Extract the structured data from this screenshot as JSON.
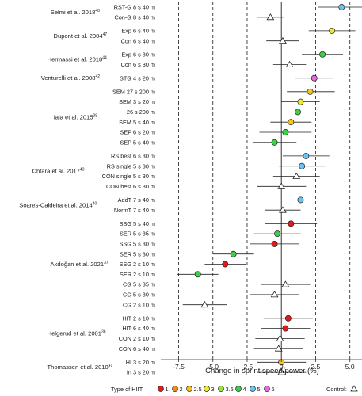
{
  "chart_data": {
    "type": "scatter",
    "xlabel": "Change in sprint speed/power (%)",
    "xlim": [
      -8.8,
      6.0
    ],
    "xticks": [
      "-7.5",
      "-5.0",
      "-2.5",
      "0",
      "2.5",
      "5.0"
    ],
    "grid": "dashed vertical lines at x = -7.5, -5.0, -2.5, 2.5, 5.0; solid line at 0",
    "studies": [
      {
        "name": "Selmi et al. 2018",
        "ref": "48",
        "rows": [
          0,
          1
        ]
      },
      {
        "name": "Dupont et al. 2004",
        "ref": "47",
        "rows": [
          2,
          3
        ]
      },
      {
        "name": "Hermassi et al. 2018",
        "ref": "44",
        "rows": [
          4,
          5
        ]
      },
      {
        "name": "Venturelli et al. 2008",
        "ref": "42",
        "rows": [
          6
        ]
      },
      {
        "name": "Iaia et al. 2015",
        "ref": "38",
        "rows": [
          7,
          8,
          9,
          10,
          11,
          12
        ]
      },
      {
        "name": "Chtara et al. 2017",
        "ref": "43",
        "rows": [
          13,
          14,
          15,
          16
        ]
      },
      {
        "name": "Soares-Caldeira et al. 2014",
        "ref": "40",
        "rows": [
          17,
          18
        ]
      },
      {
        "name": "Akdoğan et al. 2021",
        "ref": "37",
        "rows": [
          19,
          20,
          21,
          22,
          23,
          24,
          25,
          26,
          27
        ]
      },
      {
        "name": "Helgerud et al. 2001",
        "ref": "36",
        "rows": [
          28,
          29,
          30,
          31
        ]
      },
      {
        "name": "Thomassen et al. 2010",
        "ref": "41",
        "rows": [
          32,
          33
        ]
      }
    ],
    "rows": [
      {
        "label": "RST-G 8 s 40 m",
        "value": 4.4,
        "lo": 2.7,
        "hi": 6.1,
        "group": "5"
      },
      {
        "label": "Con-G 8 s 40 m",
        "value": -0.8,
        "lo": -1.8,
        "hi": 0.2,
        "group": "control"
      },
      {
        "label": "Exp 6 s 40 m",
        "value": 3.7,
        "lo": 2.0,
        "hi": 5.4,
        "group": "3"
      },
      {
        "label": "Con 6 s 40 m",
        "value": 0.1,
        "lo": -1.1,
        "hi": 1.3,
        "group": "control"
      },
      {
        "label": "Exp 6 s 30 m",
        "value": 3.0,
        "lo": 1.5,
        "hi": 4.5,
        "group": "4"
      },
      {
        "label": "Con 6 s 30 m",
        "value": 0.6,
        "lo": -0.6,
        "hi": 1.8,
        "group": "control"
      },
      {
        "label": "STG 4 s 20 m",
        "value": 2.4,
        "lo": 1.0,
        "hi": 3.8,
        "group": "6"
      },
      {
        "label": "SEM 27 s 200 m",
        "value": 2.1,
        "lo": 0.4,
        "hi": 3.9,
        "group": "2.5"
      },
      {
        "label": "SEM 3 s 20 m",
        "value": 1.4,
        "lo": 0.0,
        "hi": 2.8,
        "group": "3"
      },
      {
        "label": "26 s 200 m",
        "value": 1.2,
        "lo": -0.3,
        "hi": 2.7,
        "group": "4"
      },
      {
        "label": "SEM 5 s 40 m",
        "value": 0.7,
        "lo": -0.8,
        "hi": 2.2,
        "group": "2.5"
      },
      {
        "label": "SEP 6 s 20 m",
        "value": 0.3,
        "lo": -1.6,
        "hi": 2.2,
        "group": "4"
      },
      {
        "label": "SEP 5 s 40 m",
        "value": -0.5,
        "lo": -2.1,
        "hi": 1.1,
        "group": "4"
      },
      {
        "label": "RS best 6 s 30 m",
        "value": 1.8,
        "lo": 0.1,
        "hi": 3.5,
        "group": "5"
      },
      {
        "label": "RS single 5 s 30 m",
        "value": 1.5,
        "lo": -0.2,
        "hi": 3.2,
        "group": "5"
      },
      {
        "label": "CON single 5 s 30 m",
        "value": 1.1,
        "lo": -0.6,
        "hi": 2.8,
        "group": "control"
      },
      {
        "label": "CON best 6 s 30 m",
        "value": 0.0,
        "lo": -1.8,
        "hi": 1.8,
        "group": "control"
      },
      {
        "label": "AddT 7 s 40 m",
        "value": 1.4,
        "lo": 0.1,
        "hi": 2.7,
        "group": "5"
      },
      {
        "label": "NormT 7 s 40 m",
        "value": 0.1,
        "lo": -1.2,
        "hi": 1.4,
        "group": "control"
      },
      {
        "label": "SSG 5 s 40 m",
        "value": 0.7,
        "lo": -1.2,
        "hi": 2.6,
        "group": "1"
      },
      {
        "label": "SER 5 s 35 m",
        "value": -0.3,
        "lo": -2.0,
        "hi": 1.4,
        "group": "4"
      },
      {
        "label": "SSG 5 s 30 m",
        "value": -0.5,
        "lo": -2.3,
        "hi": 1.3,
        "group": "1"
      },
      {
        "label": "SER 5 s 30 m",
        "value": -3.5,
        "lo": -5.0,
        "hi": -2.0,
        "group": "4"
      },
      {
        "label": "SSG 2 s 10 m",
        "value": -4.1,
        "lo": -5.6,
        "hi": -2.6,
        "group": "1"
      },
      {
        "label": "SER 2 s 10 m",
        "value": -6.1,
        "lo": -7.6,
        "hi": -4.6,
        "group": "4"
      },
      {
        "label": "CG 5 s 35 m",
        "value": 0.3,
        "lo": -1.5,
        "hi": 2.1,
        "group": "control"
      },
      {
        "label": "CG 5 s 30 m",
        "value": -0.5,
        "lo": -2.3,
        "hi": 1.3,
        "group": "control"
      },
      {
        "label": "CG 2 s 10 m",
        "value": -5.6,
        "lo": -7.2,
        "hi": -4.0,
        "group": "control"
      },
      {
        "label": "HIT 2 s 10 m",
        "value": 0.5,
        "lo": -1.3,
        "hi": 2.3,
        "group": "1"
      },
      {
        "label": "HIT 6 s 40 m",
        "value": 0.3,
        "lo": -1.5,
        "hi": 2.1,
        "group": "1"
      },
      {
        "label": "CON 2 s 10 m",
        "value": -0.1,
        "lo": -1.9,
        "hi": 1.7,
        "group": "control"
      },
      {
        "label": "CON 6 s 40 m",
        "value": -0.2,
        "lo": -2.0,
        "hi": 1.6,
        "group": "control"
      },
      {
        "label": "HI 3 s 20 m",
        "value": 0.0,
        "lo": -1.8,
        "hi": 1.8,
        "group": "2.5"
      },
      {
        "label": "In 3 s 20 m",
        "value": 0.0,
        "lo": -1.8,
        "hi": 1.8,
        "group": "control"
      }
    ],
    "legend": {
      "placement": "bottom",
      "title": "Type of HIIT:",
      "control_label": "Control:",
      "items": [
        {
          "group": "1",
          "label": "1",
          "color": "#e31a1c"
        },
        {
          "group": "2",
          "label": "2",
          "color": "#f08c1e"
        },
        {
          "group": "2.5",
          "label": "2.5",
          "color": "#f5c518"
        },
        {
          "group": "3",
          "label": "3",
          "color": "#eaea33"
        },
        {
          "group": "3.5",
          "label": "3.5",
          "color": "#9fe04a"
        },
        {
          "group": "4",
          "label": "4",
          "color": "#3ecf4a"
        },
        {
          "group": "5",
          "label": "5",
          "color": "#6cc3f2"
        },
        {
          "group": "6",
          "label": "6",
          "color": "#e46be0"
        }
      ]
    }
  }
}
